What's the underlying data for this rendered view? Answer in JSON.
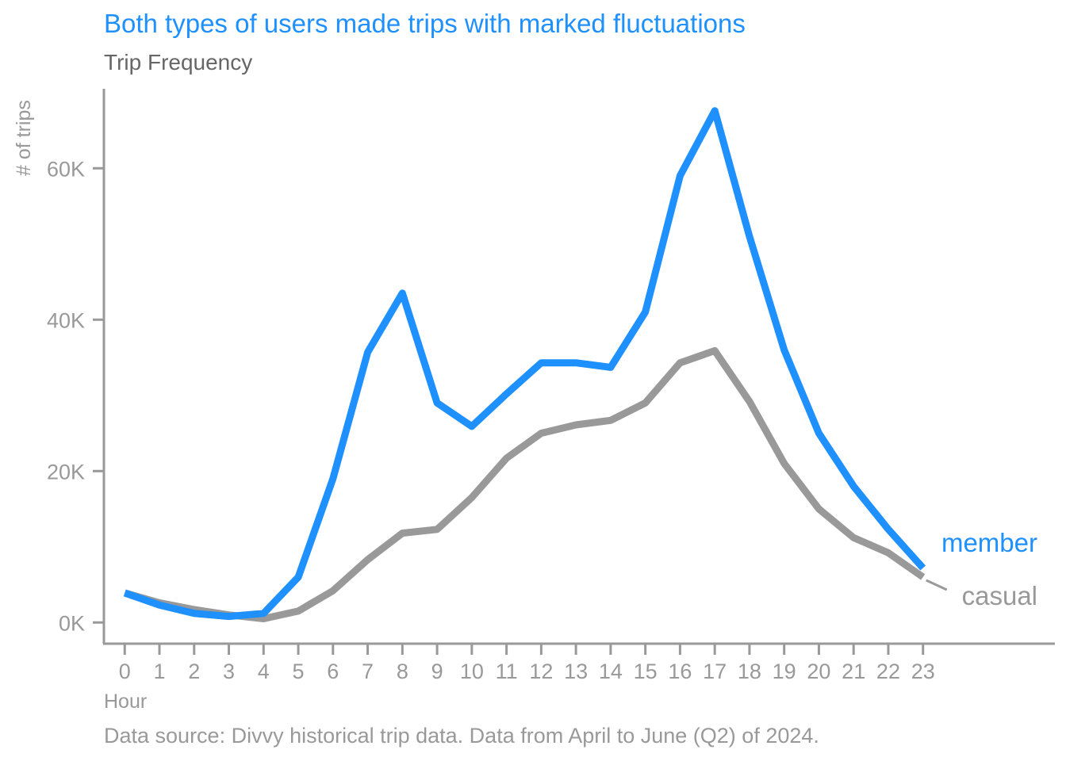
{
  "chart_data": {
    "type": "line",
    "title": "Both types of users made trips with marked fluctuations",
    "subtitle": "Trip Frequency",
    "xlabel": "Hour",
    "ylabel": "# of trips",
    "caption": "Data source: Divvy historical trip data. Data from April to June (Q2) of 2024.",
    "x": [
      0,
      1,
      2,
      3,
      4,
      5,
      6,
      7,
      8,
      9,
      10,
      11,
      12,
      13,
      14,
      15,
      16,
      17,
      18,
      19,
      20,
      21,
      22,
      23
    ],
    "x_tick_labels": [
      "0",
      "1",
      "2",
      "3",
      "4",
      "5",
      "6",
      "7",
      "8",
      "9",
      "10",
      "11",
      "12",
      "13",
      "14",
      "15",
      "16",
      "17",
      "18",
      "19",
      "20",
      "21",
      "22",
      "23"
    ],
    "y_ticks": [
      0,
      20000,
      40000,
      60000
    ],
    "y_tick_labels": [
      "0K",
      "20K",
      "40K",
      "60K"
    ],
    "xlim": [
      -0.6,
      26.8
    ],
    "ylim": [
      -2800,
      70500
    ],
    "grid": false,
    "legend": "direct labels at line ends",
    "series": [
      {
        "name": "member",
        "color": "#1e90ff",
        "values": [
          3900,
          2300,
          1200,
          800,
          1200,
          6000,
          19000,
          35700,
          43500,
          29000,
          25900,
          30200,
          34300,
          34300,
          33700,
          41000,
          59000,
          67600,
          51000,
          36000,
          25000,
          18000,
          12300,
          7200
        ]
      },
      {
        "name": "casual",
        "color": "#999999",
        "values": [
          3900,
          2600,
          1700,
          1000,
          500,
          1500,
          4200,
          8300,
          11800,
          12300,
          16500,
          21700,
          25000,
          26100,
          26700,
          29000,
          34300,
          35900,
          29200,
          21000,
          15000,
          11200,
          9200,
          6000
        ]
      }
    ]
  }
}
